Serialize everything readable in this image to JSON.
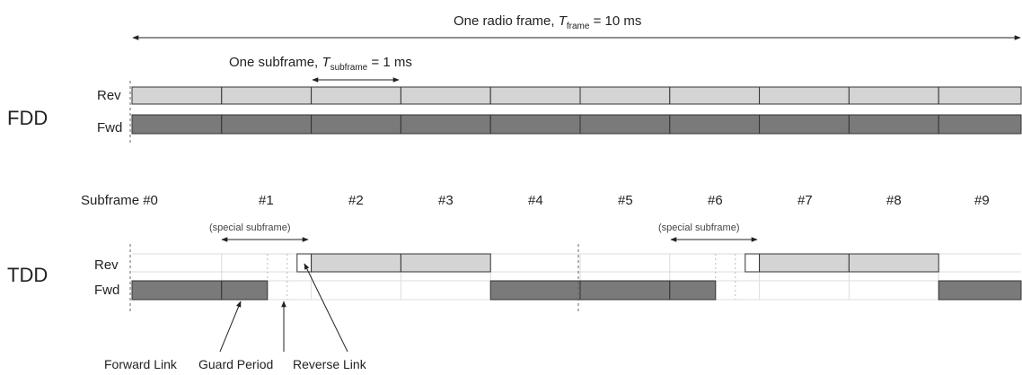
{
  "frame_label": {
    "prefix": "One radio frame, ",
    "symbol": "T",
    "sub": "frame",
    "suffix": " = 10 ms"
  },
  "subframe_label": {
    "prefix": "One subframe, ",
    "symbol": "T",
    "sub": "subframe",
    "suffix": " = 1 ms"
  },
  "fdd": {
    "title": "FDD",
    "rev_label": "Rev",
    "fwd_label": "Fwd"
  },
  "tdd": {
    "title": "TDD",
    "rev_label": "Rev",
    "fwd_label": "Fwd"
  },
  "subframe_numbers": [
    "Subframe #0",
    "#1",
    "#2",
    "#3",
    "#4",
    "#5",
    "#6",
    "#7",
    "#8",
    "#9"
  ],
  "special_subframe_label": "(special subframe)",
  "legend": {
    "forward_link": "Forward Link",
    "guard_period": "Guard Period",
    "reverse_link": "Reverse Link"
  },
  "colors": {
    "light": "#d4d4d4",
    "dark": "#7a7a7a",
    "stroke": "#333333",
    "grid": "#dcdcdc"
  }
}
